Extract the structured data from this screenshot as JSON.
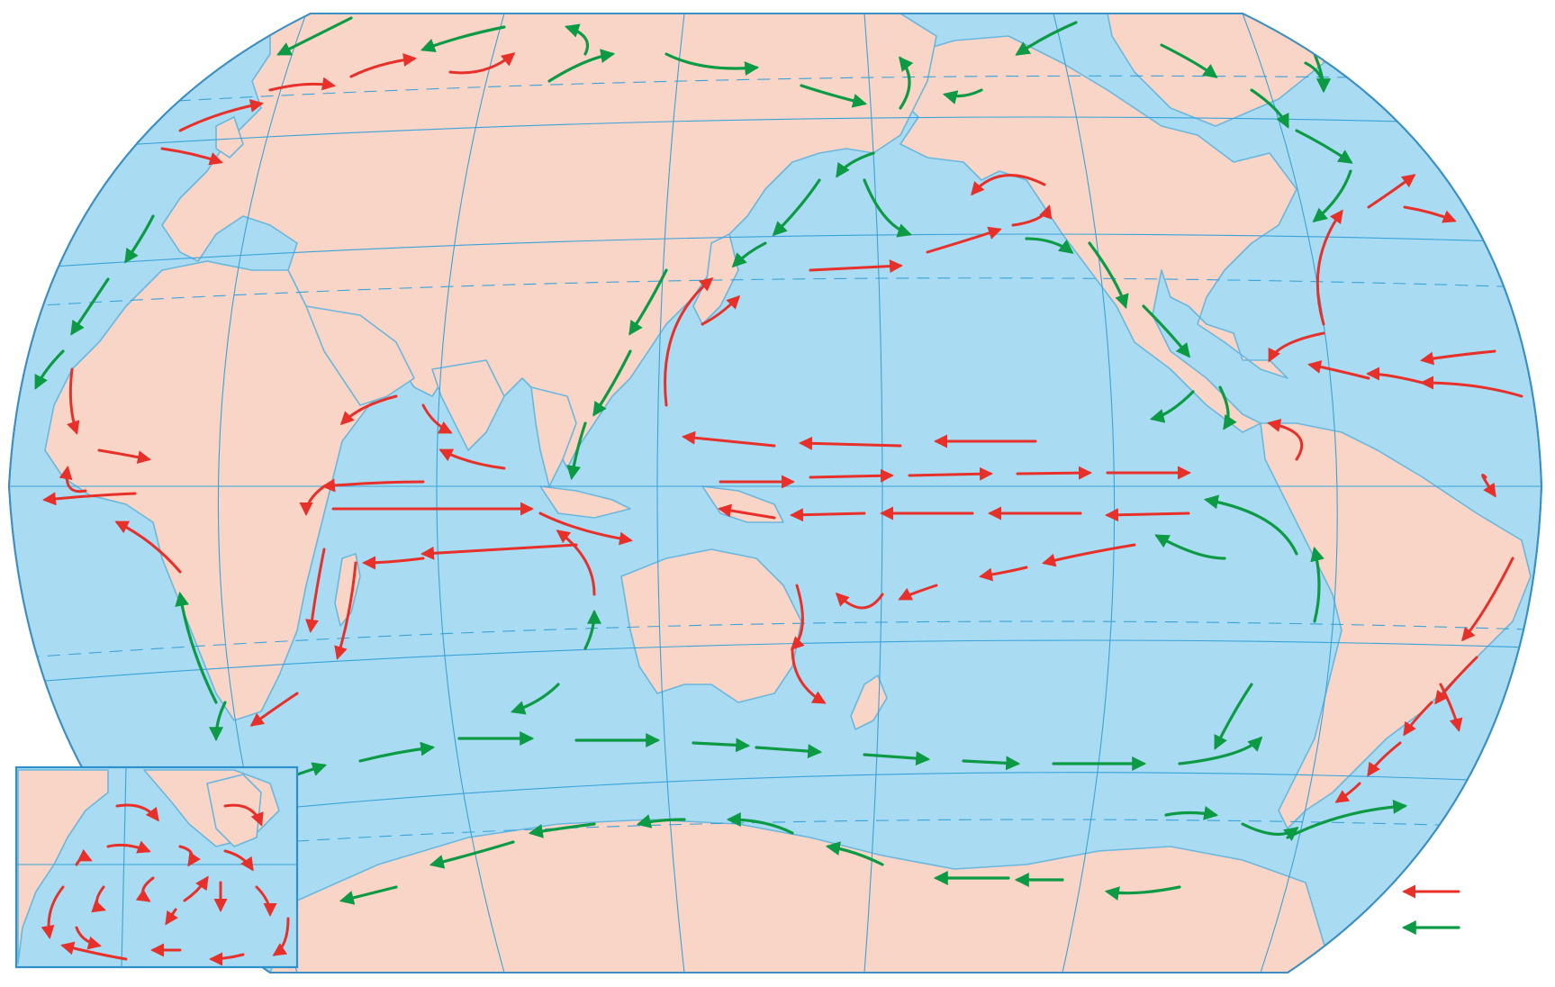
{
  "colors": {
    "ocean": "#a9dcf2",
    "land": "#f9d5c8",
    "warm_current": "#e8302a",
    "cold_current": "#0d9a45",
    "grid": "#3aa2d8"
  },
  "legend": {
    "warm_current_icon": "red-arrow-icon",
    "cold_current_icon": "green-arrow-icon"
  }
}
